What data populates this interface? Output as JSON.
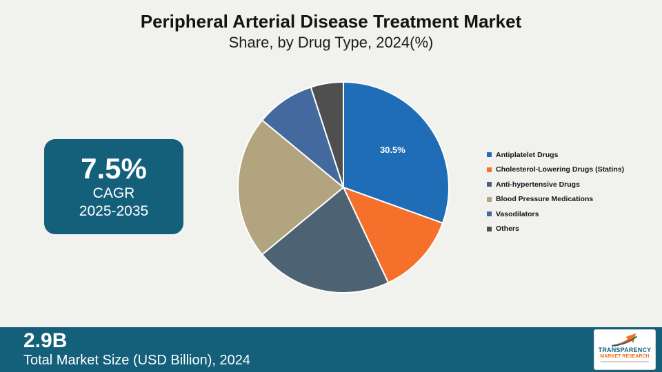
{
  "title": "Peripheral Arterial Disease Treatment Market",
  "subtitle": "Share, by Drug Type, 2024(%)",
  "cagr_box": {
    "value": "7.5%",
    "label": "CAGR",
    "period": "2025-2035"
  },
  "footer": {
    "market_size": "2.9B",
    "caption": "Total Market Size (USD Billion), 2024"
  },
  "logo": {
    "line1": "TRANSPARENCY",
    "line2": "MARKET RESEARCH"
  },
  "chart_data": {
    "type": "pie",
    "title": "Peripheral Arterial Disease Treatment Market Share, by Drug Type, 2024(%)",
    "unit": "%",
    "start_angle_deg": -90,
    "direction": "clockwise",
    "legend_position": "right",
    "slices": [
      {
        "label": "Antiplatelet Drugs",
        "value": 30.5,
        "color": "#1f6db6",
        "data_label": "30.5%"
      },
      {
        "label": "Cholesterol-Lowering Drugs (Statins)",
        "value": 12.5,
        "color": "#f4702b",
        "data_label": ""
      },
      {
        "label": "Anti-hypertensive Drugs",
        "value": 21.0,
        "color": "#4d6374",
        "data_label": ""
      },
      {
        "label": "Blood Pressure Medications",
        "value": 22.0,
        "color": "#b2a47f",
        "data_label": ""
      },
      {
        "label": "Vasodilators",
        "value": 9.0,
        "color": "#44699f",
        "data_label": ""
      },
      {
        "label": "Others",
        "value": 5.0,
        "color": "#4f4f4f",
        "data_label": ""
      }
    ]
  }
}
